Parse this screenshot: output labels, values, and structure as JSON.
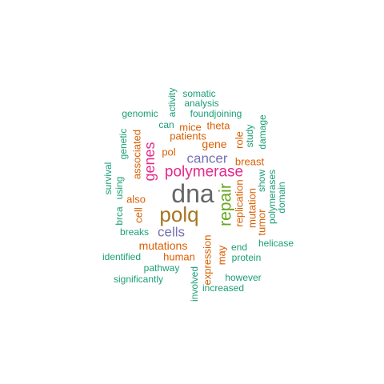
{
  "palette": {
    "green": "#1b9e77",
    "orange": "#d95f02",
    "purple": "#7570b3",
    "pink": "#e7298a",
    "lime": "#66a61e",
    "gold": "#a6761d",
    "gray": "#666666"
  },
  "words": [
    {
      "text": "dna",
      "color": "gray",
      "vertical": false
    },
    {
      "text": "polq",
      "color": "gold",
      "vertical": false
    },
    {
      "text": "polymerase",
      "color": "pink",
      "vertical": false
    },
    {
      "text": "repair",
      "color": "lime",
      "vertical": true
    },
    {
      "text": "genes",
      "color": "pink",
      "vertical": true
    },
    {
      "text": "cancer",
      "color": "purple",
      "vertical": false
    },
    {
      "text": "cells",
      "color": "purple",
      "vertical": false
    },
    {
      "text": "mutations",
      "color": "orange",
      "vertical": false
    },
    {
      "text": "gene",
      "color": "orange",
      "vertical": false
    },
    {
      "text": "pol",
      "color": "orange",
      "vertical": false
    },
    {
      "text": "breast",
      "color": "orange",
      "vertical": false
    },
    {
      "text": "replication",
      "color": "orange",
      "vertical": true
    },
    {
      "text": "expression",
      "color": "orange",
      "vertical": true
    },
    {
      "text": "associated",
      "color": "orange",
      "vertical": true
    },
    {
      "text": "patients",
      "color": "orange",
      "vertical": false
    },
    {
      "text": "theta",
      "color": "orange",
      "vertical": false
    },
    {
      "text": "mice",
      "color": "orange",
      "vertical": false
    },
    {
      "text": "human",
      "color": "orange",
      "vertical": false
    },
    {
      "text": "also",
      "color": "orange",
      "vertical": false
    },
    {
      "text": "cell",
      "color": "orange",
      "vertical": true
    },
    {
      "text": "mutation",
      "color": "orange",
      "vertical": true
    },
    {
      "text": "tumor",
      "color": "orange",
      "vertical": true
    },
    {
      "text": "may",
      "color": "orange",
      "vertical": true
    },
    {
      "text": "role",
      "color": "orange",
      "vertical": true
    },
    {
      "text": "somatic",
      "color": "green",
      "vertical": false
    },
    {
      "text": "analysis",
      "color": "green",
      "vertical": false
    },
    {
      "text": "activity",
      "color": "green",
      "vertical": true
    },
    {
      "text": "genomic",
      "color": "green",
      "vertical": false
    },
    {
      "text": "foundjoining",
      "color": "green",
      "vertical": false
    },
    {
      "text": "can",
      "color": "green",
      "vertical": false
    },
    {
      "text": "study",
      "color": "green",
      "vertical": true
    },
    {
      "text": "damage",
      "color": "green",
      "vertical": true
    },
    {
      "text": "genetic",
      "color": "green",
      "vertical": true
    },
    {
      "text": "survival",
      "color": "green",
      "vertical": true
    },
    {
      "text": "using",
      "color": "green",
      "vertical": true
    },
    {
      "text": "brca",
      "color": "green",
      "vertical": true
    },
    {
      "text": "show",
      "color": "green",
      "vertical": true
    },
    {
      "text": "polymerases",
      "color": "green",
      "vertical": true
    },
    {
      "text": "domain",
      "color": "green",
      "vertical": true
    },
    {
      "text": "breaks",
      "color": "green",
      "vertical": false
    },
    {
      "text": "helicase",
      "color": "green",
      "vertical": false
    },
    {
      "text": "end",
      "color": "green",
      "vertical": false
    },
    {
      "text": "protein",
      "color": "green",
      "vertical": false
    },
    {
      "text": "identified",
      "color": "green",
      "vertical": false
    },
    {
      "text": "pathway",
      "color": "green",
      "vertical": false
    },
    {
      "text": "significantly",
      "color": "green",
      "vertical": false
    },
    {
      "text": "however",
      "color": "green",
      "vertical": false
    },
    {
      "text": "increased",
      "color": "green",
      "vertical": false
    },
    {
      "text": "involved",
      "color": "green",
      "vertical": true
    }
  ]
}
